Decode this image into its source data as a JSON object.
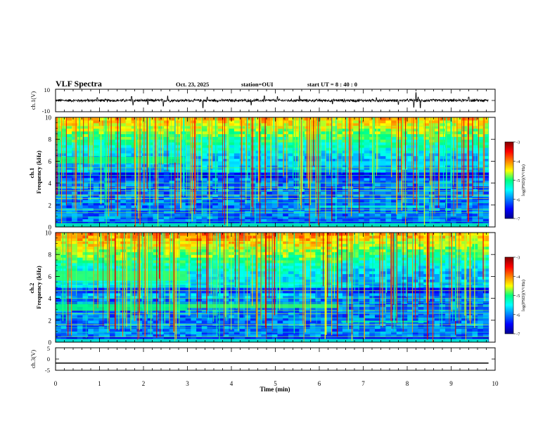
{
  "header": {
    "title": "VLF Spectra",
    "date": "Oct. 23, 2025",
    "station": "station=OUI",
    "start_ut": "start  UT =  8 : 40 : 0"
  },
  "chart_data": [
    {
      "id": "ch1-waveform",
      "type": "line",
      "ylabel": "ch.1(V)",
      "ylim": [
        -10,
        10
      ],
      "yticks": [
        10,
        -10
      ],
      "baseline": 0,
      "noise_amplitude": 1.2,
      "spikes": [
        [
          1.73,
          3.5
        ],
        [
          1.76,
          -4
        ],
        [
          2.55,
          4
        ],
        [
          2.45,
          -5
        ],
        [
          3.35,
          -6.5
        ],
        [
          3.45,
          3
        ],
        [
          4.45,
          -4
        ],
        [
          4.75,
          4
        ],
        [
          5.55,
          4
        ],
        [
          7.8,
          -3.5
        ],
        [
          8.2,
          7
        ],
        [
          8.15,
          -6
        ],
        [
          8.3,
          -6.5
        ],
        [
          8.25,
          3
        ],
        [
          7.3,
          2.5
        ],
        [
          6.3,
          -3
        ],
        [
          5.05,
          3.5
        ],
        [
          0.95,
          2.5
        ],
        [
          2.1,
          -3.5
        ],
        [
          9.4,
          3
        ]
      ]
    },
    {
      "id": "ch1-spectrogram",
      "type": "heatmap",
      "ylabel": "ch.1\nFrequency (kHz)",
      "ylim": [
        0,
        10
      ],
      "yticks": [
        0,
        2,
        4,
        6,
        8,
        10
      ],
      "xlim": [
        0,
        10
      ],
      "data_end_min": 9.85,
      "colorbar": {
        "label": "log(PSD)(V²/Hz)",
        "range": [
          -7,
          -3
        ],
        "ticks": [
          -3,
          -4,
          -5,
          -6,
          -7
        ]
      },
      "features": [
        {
          "kind": "band",
          "t0": 0,
          "t1": 2.95,
          "f0": 5.8,
          "f1": 6.4,
          "level": -5.0
        },
        {
          "kind": "band",
          "t0": 2.95,
          "t1": 9.85,
          "f0": 5.6,
          "f1": 6.0,
          "level": -5.6
        },
        {
          "kind": "band",
          "t0": 6.0,
          "t1": 8.4,
          "f0": 1.75,
          "f1": 1.95,
          "level": -5.3
        },
        {
          "kind": "band",
          "t0": 0,
          "t1": 9.85,
          "f0": 0,
          "f1": 0.35,
          "level": -5.2
        }
      ]
    },
    {
      "id": "ch2-spectrogram",
      "type": "heatmap",
      "ylabel": "ch.2\nFrequency (kHz)",
      "ylim": [
        0,
        10
      ],
      "yticks": [
        0,
        2,
        4,
        6,
        8,
        10
      ],
      "xlim": [
        0,
        10
      ],
      "data_end_min": 9.85,
      "colorbar": {
        "label": "log(PSD)(V²/Hz)",
        "range": [
          -7,
          -3
        ],
        "ticks": [
          -3,
          -4,
          -5,
          -6,
          -7
        ]
      },
      "features": [
        {
          "kind": "band",
          "t0": 0,
          "t1": 3.0,
          "f0": 5.6,
          "f1": 6.5,
          "level": -4.9
        },
        {
          "kind": "band",
          "t0": 0,
          "t1": 3.0,
          "f0": 2.9,
          "f1": 3.5,
          "level": -5.0
        },
        {
          "kind": "band",
          "t0": 3.0,
          "t1": 6.45,
          "f0": 3.1,
          "f1": 3.5,
          "level": -4.9
        },
        {
          "kind": "band",
          "t0": 6.45,
          "t1": 9.85,
          "f0": 2.6,
          "f1": 2.8,
          "level": -5.9
        },
        {
          "kind": "band",
          "t0": 6.5,
          "t1": 8.45,
          "f0": 1.8,
          "f1": 1.95,
          "level": -5.1
        },
        {
          "kind": "band",
          "t0": 0,
          "t1": 9.85,
          "f0": 0,
          "f1": 0.3,
          "level": -5.3
        }
      ]
    },
    {
      "id": "ch3-waveform",
      "type": "line",
      "ylabel": "ch.3(V)",
      "ylim": [
        -5,
        5
      ],
      "yticks": [
        5,
        0,
        -5
      ],
      "baseline": -1.8,
      "noise_amplitude": 0
    }
  ],
  "x_axis": {
    "xlabel": "Time (min)",
    "ticks": [
      "0",
      "1",
      "2",
      "3",
      "4",
      "5",
      "6",
      "7",
      "8",
      "9",
      "10"
    ]
  }
}
